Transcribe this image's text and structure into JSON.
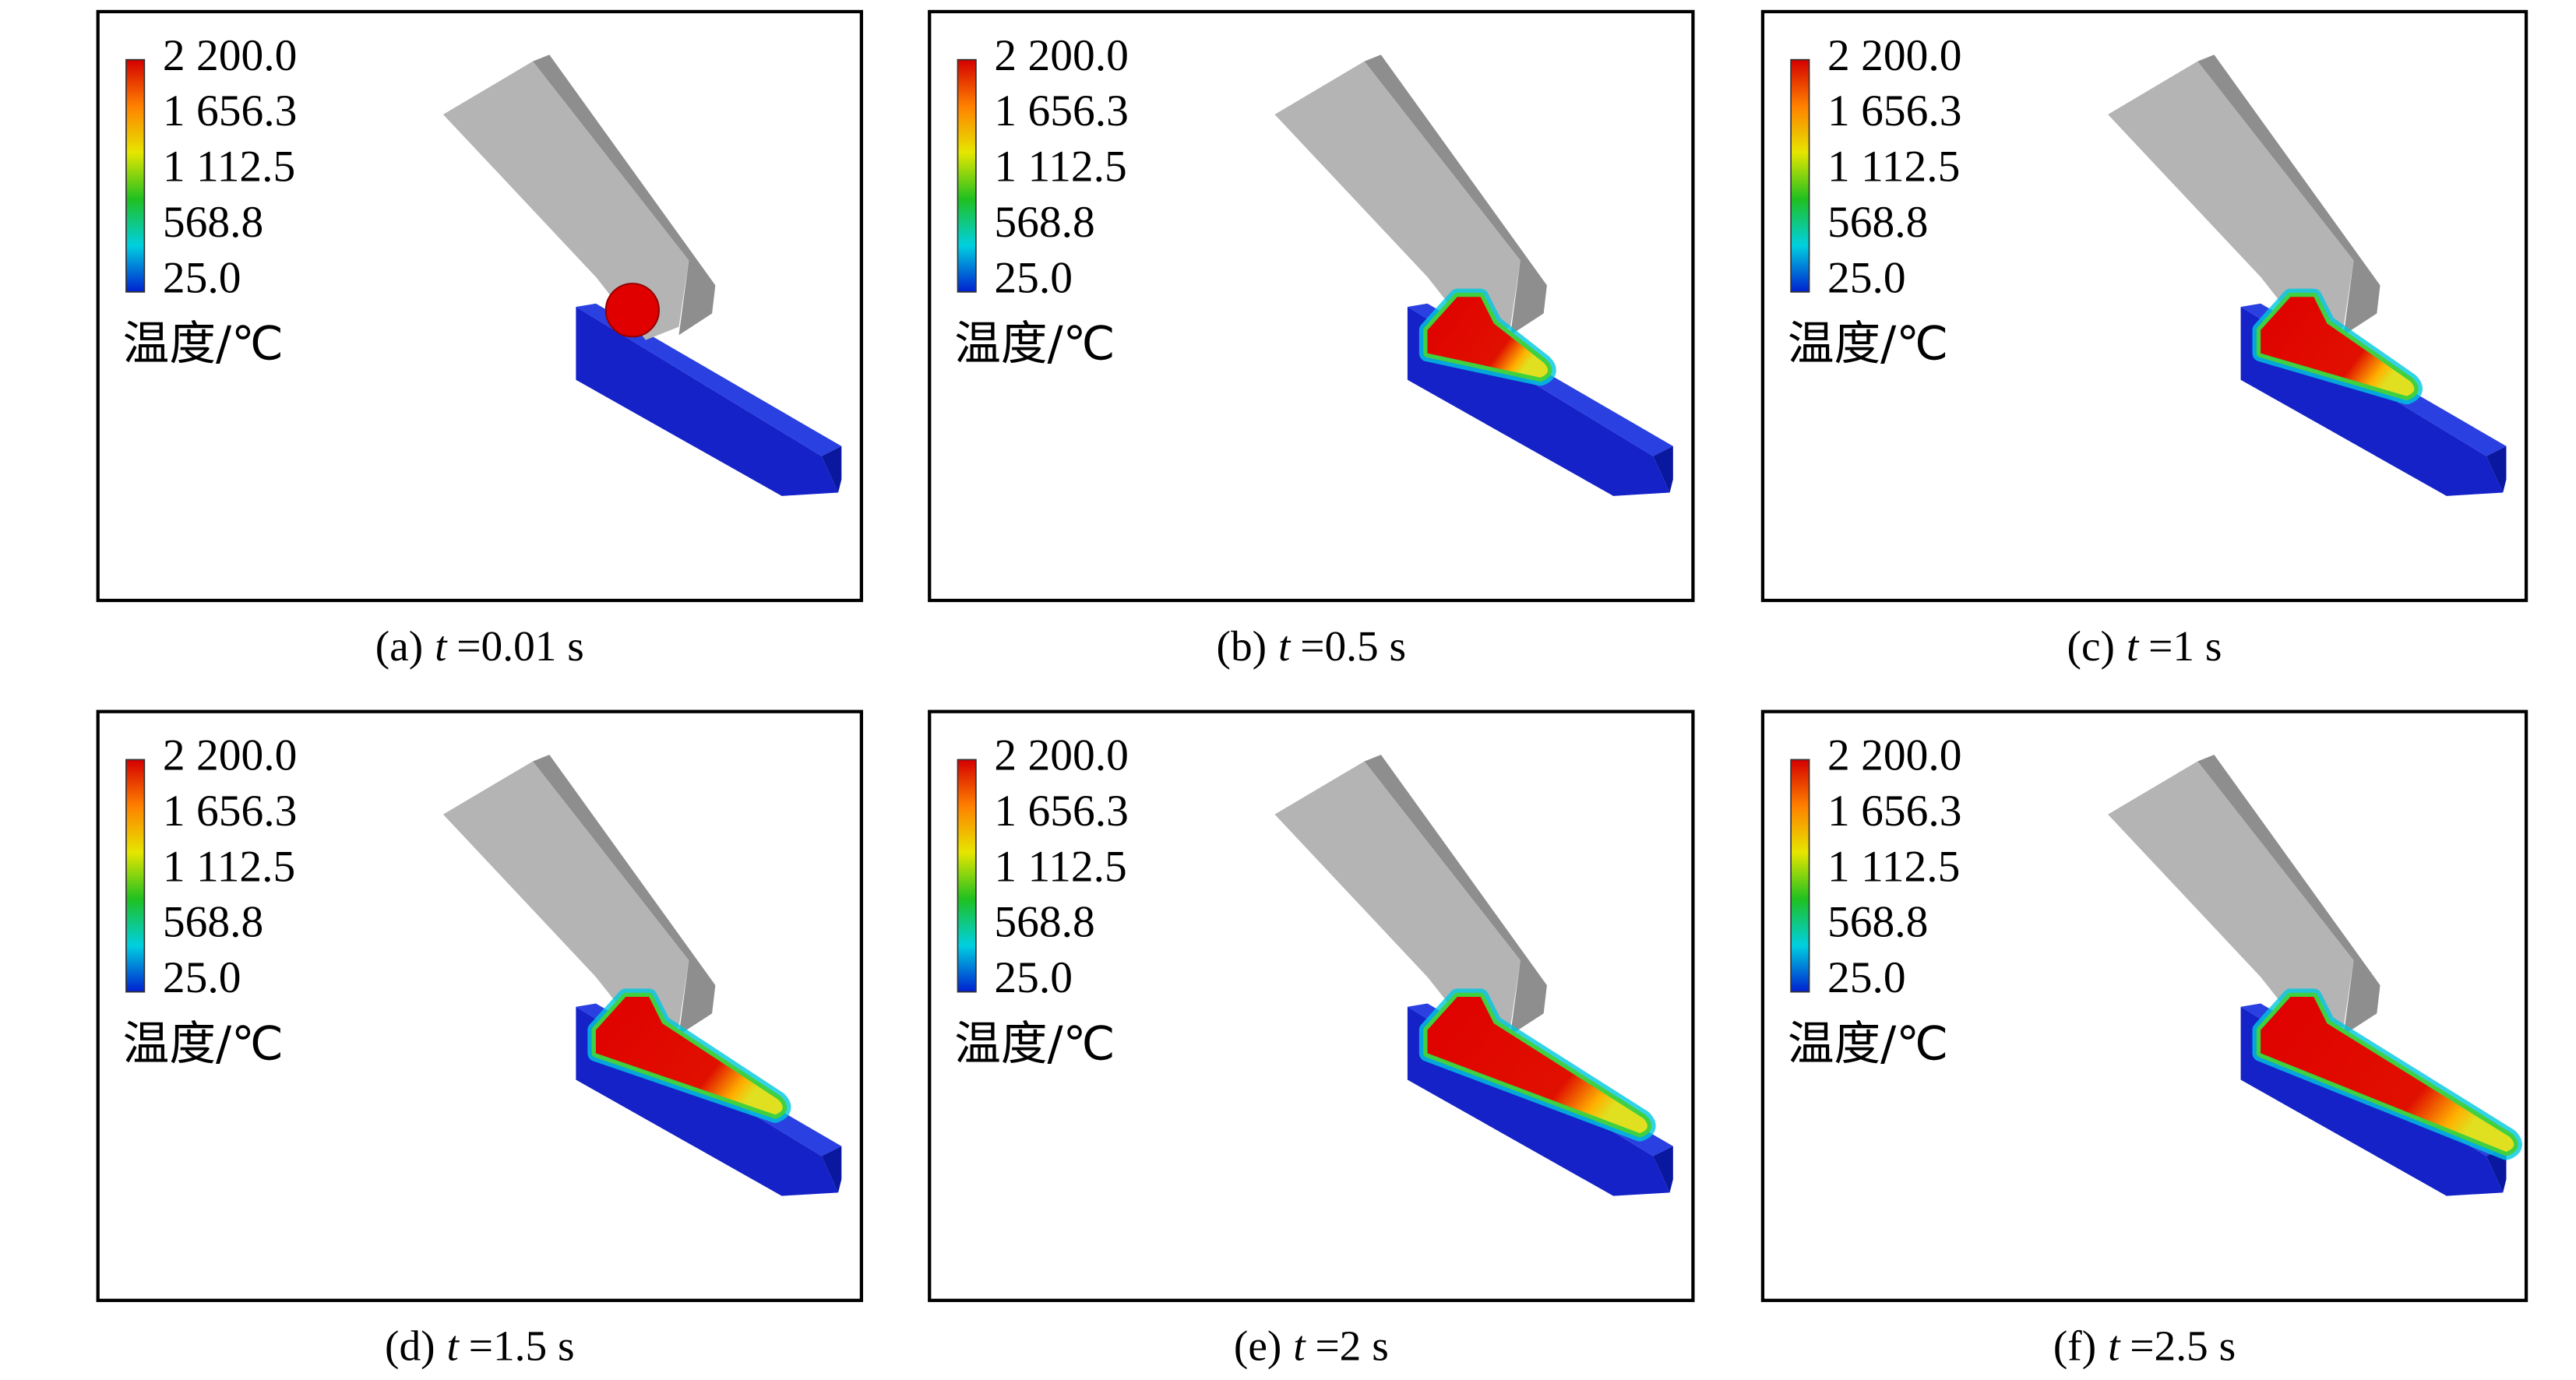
{
  "legend": {
    "ticks": [
      "2 200.0",
      "1 656.3",
      "1 112.5",
      "568.8",
      "25.0"
    ],
    "title": "温度/℃"
  },
  "panels": [
    {
      "label": "(a)",
      "variable": "t",
      "value": "=0.01 s"
    },
    {
      "label": "(b)",
      "variable": "t",
      "value": "=0.5 s"
    },
    {
      "label": "(c)",
      "variable": "t",
      "value": "=1 s"
    },
    {
      "label": "(d)",
      "variable": "t",
      "value": "=1.5 s"
    },
    {
      "label": "(e)",
      "variable": "t",
      "value": "=2 s"
    },
    {
      "label": "(f)",
      "variable": "t",
      "value": "=2.5 s"
    }
  ]
}
